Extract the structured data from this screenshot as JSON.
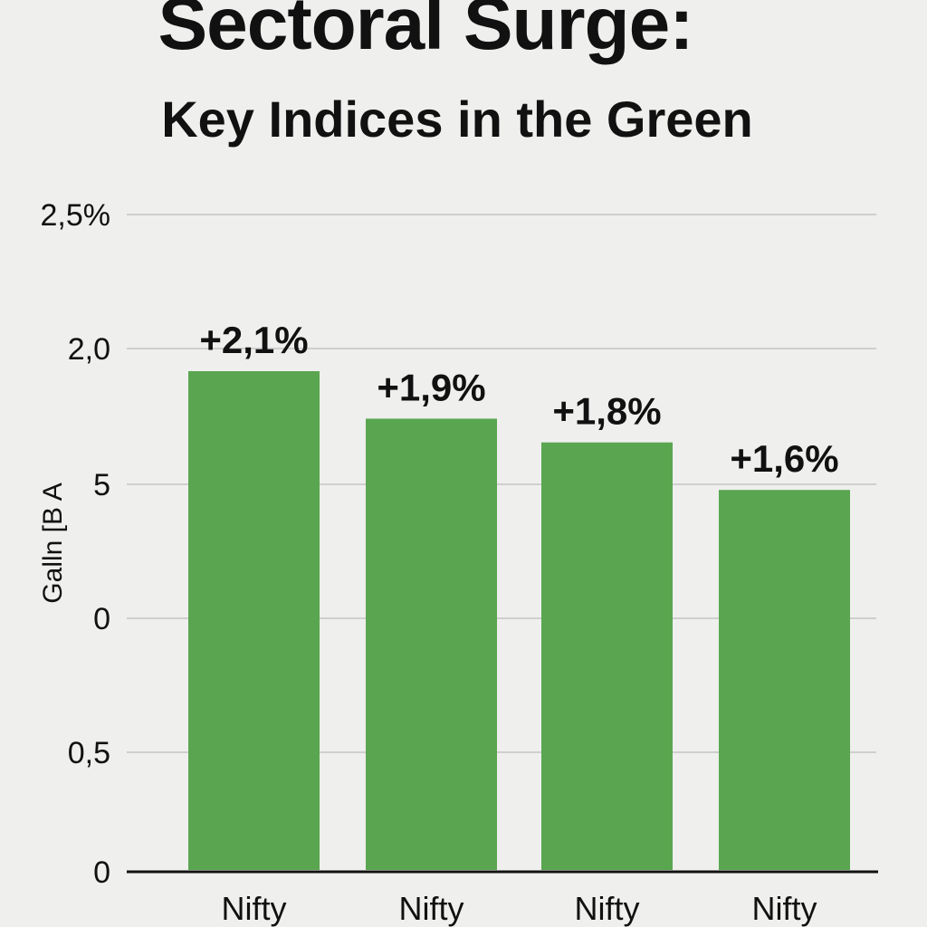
{
  "chart_data": {
    "type": "bar",
    "title": "Sectoral Surge:",
    "subtitle": "Key Indices in the Green",
    "ylabel": "Galln [B A",
    "categories": [
      "Nifty",
      "Nifty",
      "Nifty",
      "Nifty"
    ],
    "values": [
      2.1,
      1.9,
      1.8,
      1.6
    ],
    "data_labels": [
      "+2,1%",
      "+1,9%",
      "+1,8%",
      "+1,6%"
    ],
    "ytick_labels": [
      "2,5%",
      "2,0",
      "5",
      "0",
      "0,5",
      "0"
    ],
    "bar_color": "#5aa650",
    "grid": true,
    "ylim": [
      0,
      2.5
    ]
  }
}
